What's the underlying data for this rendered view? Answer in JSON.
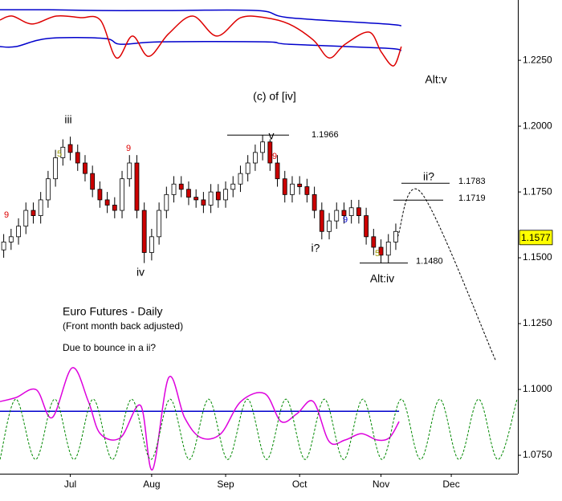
{
  "chart_data": {
    "type": "candlestick",
    "x": [
      1,
      3,
      5,
      7,
      9,
      11,
      13,
      15,
      17,
      19,
      21,
      23,
      25,
      27,
      29,
      31,
      33,
      35,
      37,
      39,
      41,
      43,
      45,
      47,
      49,
      51,
      53,
      55,
      57,
      59,
      61,
      63,
      65,
      67,
      69,
      71,
      73,
      75,
      77,
      79,
      81,
      83,
      85,
      87,
      89,
      91,
      93,
      95,
      97,
      99,
      101,
      103,
      105,
      107
    ],
    "open": [
      1.153,
      1.156,
      1.158,
      1.162,
      1.168,
      1.166,
      1.172,
      1.18,
      1.188,
      1.193,
      1.19,
      1.186,
      1.182,
      1.176,
      1.172,
      1.17,
      1.168,
      1.18,
      1.186,
      1.168,
      1.152,
      1.158,
      1.168,
      1.174,
      1.178,
      1.176,
      1.173,
      1.172,
      1.17,
      1.175,
      1.172,
      1.176,
      1.178,
      1.182,
      1.186,
      1.19,
      1.194,
      1.186,
      1.18,
      1.174,
      1.178,
      1.177,
      1.174,
      1.168,
      1.16,
      1.164,
      1.168,
      1.166,
      1.169,
      1.166,
      1.158,
      1.154,
      1.151,
      1.156
    ],
    "high": [
      1.159,
      1.161,
      1.165,
      1.171,
      1.171,
      1.175,
      1.183,
      1.191,
      1.195,
      1.196,
      1.193,
      1.189,
      1.185,
      1.179,
      1.175,
      1.173,
      1.183,
      1.189,
      1.189,
      1.171,
      1.161,
      1.171,
      1.177,
      1.181,
      1.181,
      1.179,
      1.176,
      1.175,
      1.178,
      1.178,
      1.179,
      1.181,
      1.185,
      1.189,
      1.193,
      1.1966,
      1.195,
      1.189,
      1.183,
      1.181,
      1.181,
      1.18,
      1.177,
      1.171,
      1.167,
      1.171,
      1.171,
      1.172,
      1.172,
      1.169,
      1.161,
      1.157,
      1.159,
      1.163
    ],
    "low": [
      1.15,
      1.153,
      1.155,
      1.159,
      1.163,
      1.163,
      1.169,
      1.177,
      1.185,
      1.187,
      1.183,
      1.179,
      1.173,
      1.169,
      1.167,
      1.165,
      1.165,
      1.177,
      1.165,
      1.148,
      1.149,
      1.155,
      1.165,
      1.171,
      1.173,
      1.17,
      1.169,
      1.167,
      1.167,
      1.169,
      1.169,
      1.173,
      1.175,
      1.179,
      1.183,
      1.187,
      1.183,
      1.177,
      1.171,
      1.171,
      1.174,
      1.171,
      1.165,
      1.157,
      1.157,
      1.161,
      1.163,
      1.163,
      1.163,
      1.155,
      1.151,
      1.148,
      1.148,
      1.153
    ],
    "close": [
      1.156,
      1.158,
      1.162,
      1.168,
      1.166,
      1.172,
      1.18,
      1.188,
      1.192,
      1.19,
      1.186,
      1.182,
      1.176,
      1.172,
      1.17,
      1.168,
      1.18,
      1.186,
      1.168,
      1.152,
      1.158,
      1.168,
      1.174,
      1.178,
      1.176,
      1.173,
      1.172,
      1.17,
      1.175,
      1.172,
      1.176,
      1.178,
      1.182,
      1.186,
      1.19,
      1.194,
      1.186,
      1.18,
      1.174,
      1.178,
      1.177,
      1.174,
      1.168,
      1.16,
      1.164,
      1.168,
      1.166,
      1.169,
      1.166,
      1.158,
      1.154,
      1.151,
      1.156,
      1.16
    ],
    "up_color": "#ffffff",
    "down_color": "#cc0000",
    "xlim": [
      0,
      140
    ],
    "xticks": [
      {
        "value": 19,
        "label": "Jul"
      },
      {
        "value": 41,
        "label": "Aug"
      },
      {
        "value": 61,
        "label": "Sep"
      },
      {
        "value": 81,
        "label": "Oct"
      },
      {
        "value": 103,
        "label": "Nov"
      },
      {
        "value": 122,
        "label": "Dec"
      }
    ],
    "ylim": [
      1.068,
      1.2479
    ],
    "yticks": [
      {
        "value": 1.075,
        "label": "1.0750"
      },
      {
        "value": 1.1,
        "label": "1.1000"
      },
      {
        "value": 1.125,
        "label": "1.1250"
      },
      {
        "value": 1.15,
        "label": "1.1500"
      },
      {
        "value": 1.175,
        "label": "1.1750"
      },
      {
        "value": 1.2,
        "label": "1.2000"
      },
      {
        "value": 1.225,
        "label": "1.2250"
      }
    ],
    "last_price": 1.1577,
    "last_price_color": "#ffff00",
    "lines": [
      {
        "color": "#0000cc",
        "dash": false,
        "x": [
          0,
          13,
          28.2,
          43.4,
          69.5,
          78.1,
          104.2,
          108.5
        ],
        "values": [
          1.2442,
          1.2442,
          1.2439,
          1.2439,
          1.2439,
          1.2412,
          1.2388,
          1.2381
        ]
      },
      {
        "color": "#0000cc",
        "dash": false,
        "x": [
          0,
          4.3,
          13,
          28.2,
          32.6,
          43.4,
          71.6,
          78.1,
          104.2,
          108.5
        ],
        "values": [
          1.2302,
          1.2302,
          1.2333,
          1.2333,
          1.2311,
          1.232,
          1.232,
          1.2311,
          1.2296,
          1.2287
        ]
      },
      {
        "color": "#dd0000",
        "dash": false,
        "x": [
          0,
          3.3,
          8.7,
          15.2,
          21.7,
          27.1,
          31.5,
          35.8,
          40.2,
          45.6,
          52.1,
          58.6,
          65.1,
          71.6,
          78.1,
          84.7,
          89,
          93.3,
          99.8,
          103.1,
          106.4,
          108.5
        ],
        "values": [
          1.2403,
          1.2418,
          1.2388,
          1.2418,
          1.2412,
          1.2403,
          1.2259,
          1.2342,
          1.2265,
          1.2351,
          1.2418,
          1.2342,
          1.2412,
          1.2412,
          1.2388,
          1.2327,
          1.2259,
          1.2311,
          1.2357,
          1.2281,
          1.2229,
          1.2302
        ]
      },
      {
        "color": "#0000cc",
        "dash": false,
        "x": [
          0,
          107.9
        ],
        "values": [
          1.0917,
          1.0917
        ]
      },
      {
        "color": "#dd00dd",
        "dash": false,
        "x": [
          0,
          4.3,
          9.8,
          14.1,
          19.5,
          23.9,
          27.1,
          32.6,
          38,
          41.2,
          45.6,
          49.9,
          54.3,
          59.7,
          65.1,
          71.6,
          76,
          80.3,
          84.7,
          89,
          93.3,
          97.7,
          102,
          105.3,
          107.9
        ],
        "values": [
          1.0954,
          1.0969,
          1.0999,
          1.0893,
          1.1082,
          1.0954,
          1.0832,
          1.0817,
          1.0939,
          1.0695,
          1.1045,
          1.0893,
          1.0817,
          1.0832,
          1.0954,
          1.0984,
          1.0878,
          1.0908,
          1.0954,
          1.0802,
          1.0808,
          1.0832,
          1.0808,
          1.0817,
          1.0878
        ]
      },
      {
        "color": "#008800",
        "dash": true,
        "x": [
          0,
          4.3,
          9.6,
          14.8,
          20,
          25.2,
          30.4,
          35.6,
          40.8,
          46,
          51.2,
          56.4,
          61.6,
          66.9,
          72.1,
          77.3,
          82.5,
          87.7,
          92.9,
          98.1,
          103.3,
          108.5,
          113.7,
          118.9,
          124.1,
          129.4,
          134.6,
          139.8
        ],
        "values": [
          1.0734,
          1.0963,
          1.0734,
          1.0963,
          1.0734,
          1.0963,
          1.0734,
          1.0963,
          1.0734,
          1.0963,
          1.0734,
          1.0963,
          1.0734,
          1.0963,
          1.0734,
          1.0963,
          1.0734,
          1.0963,
          1.0734,
          1.0963,
          1.0734,
          1.0963,
          1.0734,
          1.0963,
          1.0734,
          1.0963,
          1.0734,
          1.0963
        ]
      },
      {
        "color": "#000000",
        "dash": true,
        "x": [
          107.5,
          114,
          134
        ],
        "values": [
          1.158,
          1.1745,
          1.111
        ]
      }
    ],
    "levels": [
      1.1966,
      1.1783,
      1.1719,
      {
        "value": 1.148,
        "label": "1.1480"
      }
    ],
    "annotations": [
      {
        "text": "iii",
        "color": "#000000"
      },
      {
        "text": "iv",
        "color": "#000000"
      },
      {
        "text": "v",
        "color": "#000000"
      },
      {
        "text": "(c) of [iv]",
        "color": "#000000"
      },
      {
        "text": "i?",
        "color": "#000000"
      },
      {
        "text": "ii?",
        "color": "#000000"
      },
      {
        "text": "Alt:iv",
        "color": "#000000"
      },
      {
        "text": "Alt:v",
        "color": "#000000"
      },
      {
        "text": "5",
        "color": "#999900"
      },
      {
        "text": "9",
        "color": "#dd0000"
      },
      {
        "text": "9",
        "color": "#dd0000"
      },
      {
        "text": "9",
        "color": "#dd0000"
      },
      {
        "text": "9",
        "color": "#0000cc"
      },
      {
        "text": "5",
        "color": "#999900"
      }
    ],
    "title": "Euro Futures - Daily",
    "subtitle": "(Front month back adjusted)",
    "note": "Due to bounce in a ii?"
  }
}
